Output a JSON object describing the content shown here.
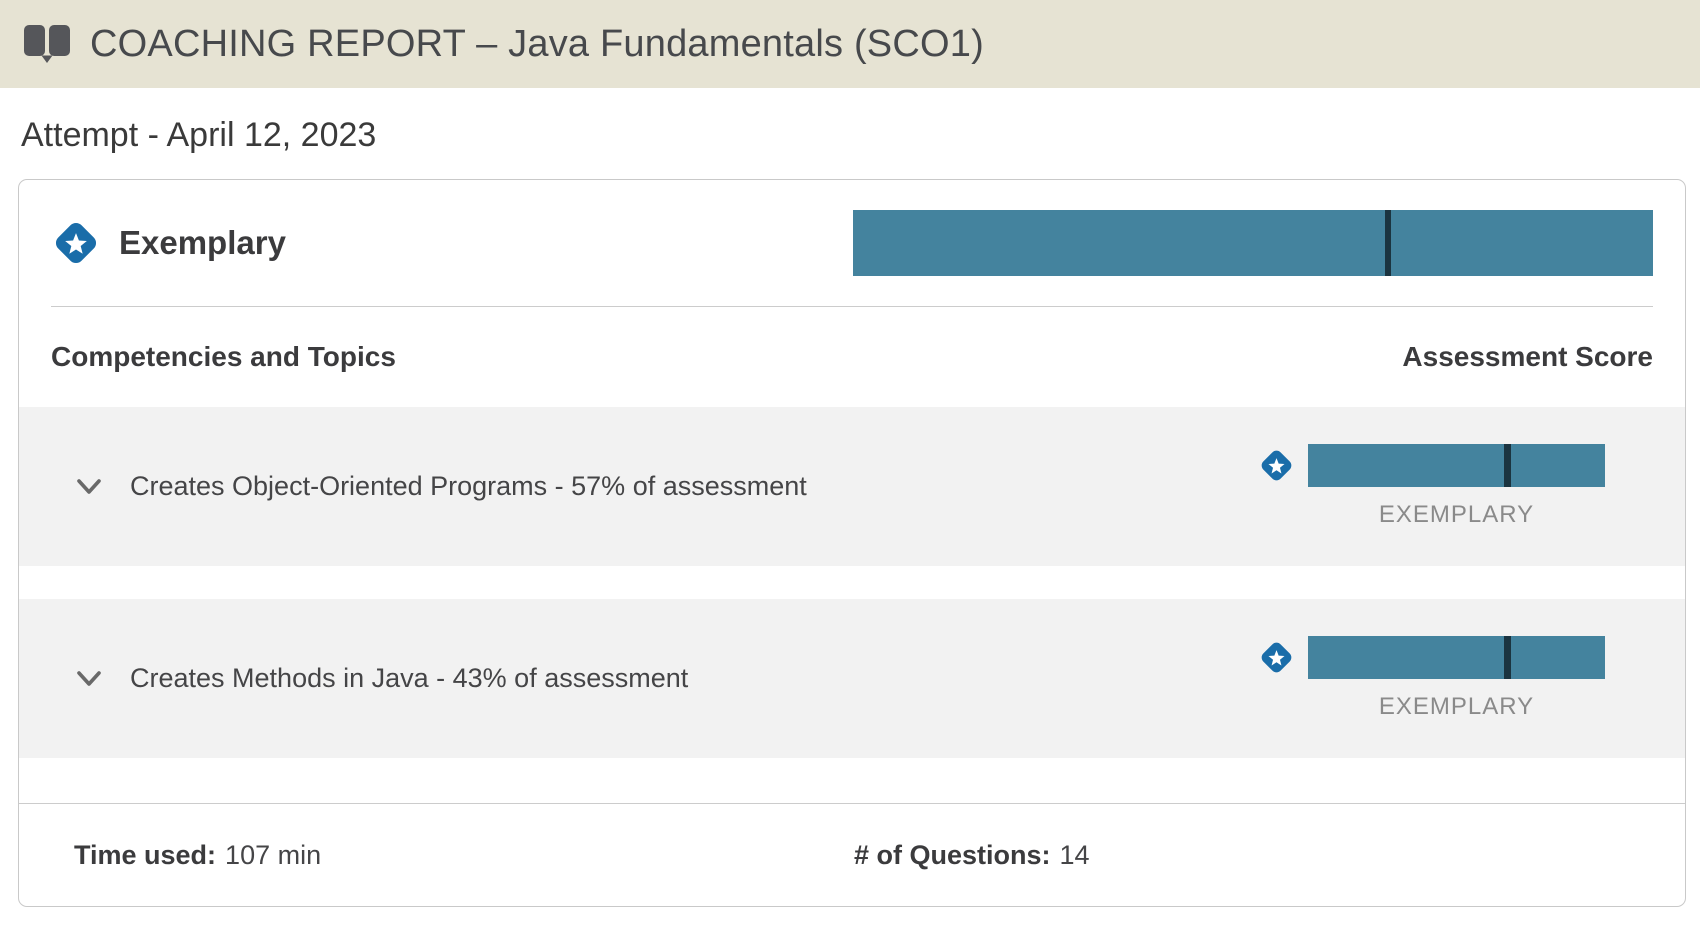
{
  "header": {
    "icon": "open-book-icon",
    "title": "COACHING REPORT – Java Fundamentals (SCO1)"
  },
  "attempt_title": "Attempt - April 12, 2023",
  "report_card": {
    "overall": {
      "badge_icon": "exemplary-star-badge-icon",
      "rating_label": "Exemplary",
      "score_bar": {
        "marker_percent": 66.5
      }
    },
    "table_headers": {
      "competencies": "Competencies and Topics",
      "score": "Assessment Score"
    },
    "rows": [
      {
        "expander_icon": "chevron-down-icon",
        "label": "Creates Object-Oriented Programs - 57% of assessment",
        "badge_icon": "exemplary-star-badge-icon",
        "score_bar": {
          "marker_percent": 66
        },
        "rating_label": "EXEMPLARY"
      },
      {
        "expander_icon": "chevron-down-icon",
        "label": "Creates Methods in Java - 43% of assessment",
        "badge_icon": "exemplary-star-badge-icon",
        "score_bar": {
          "marker_percent": 66
        },
        "rating_label": "EXEMPLARY"
      }
    ],
    "footer": {
      "time_label": "Time used:",
      "time_value": "107 min",
      "questions_label": "# of Questions:",
      "questions_value": "14"
    }
  },
  "colors": {
    "header_bg": "#E6E3D3",
    "bar_fill": "#44839E",
    "bar_marker": "#1B3440",
    "badge_blue": "#1A6DA9",
    "row_bg": "#F2F2F2",
    "rating_text": "#8A8A8A"
  }
}
